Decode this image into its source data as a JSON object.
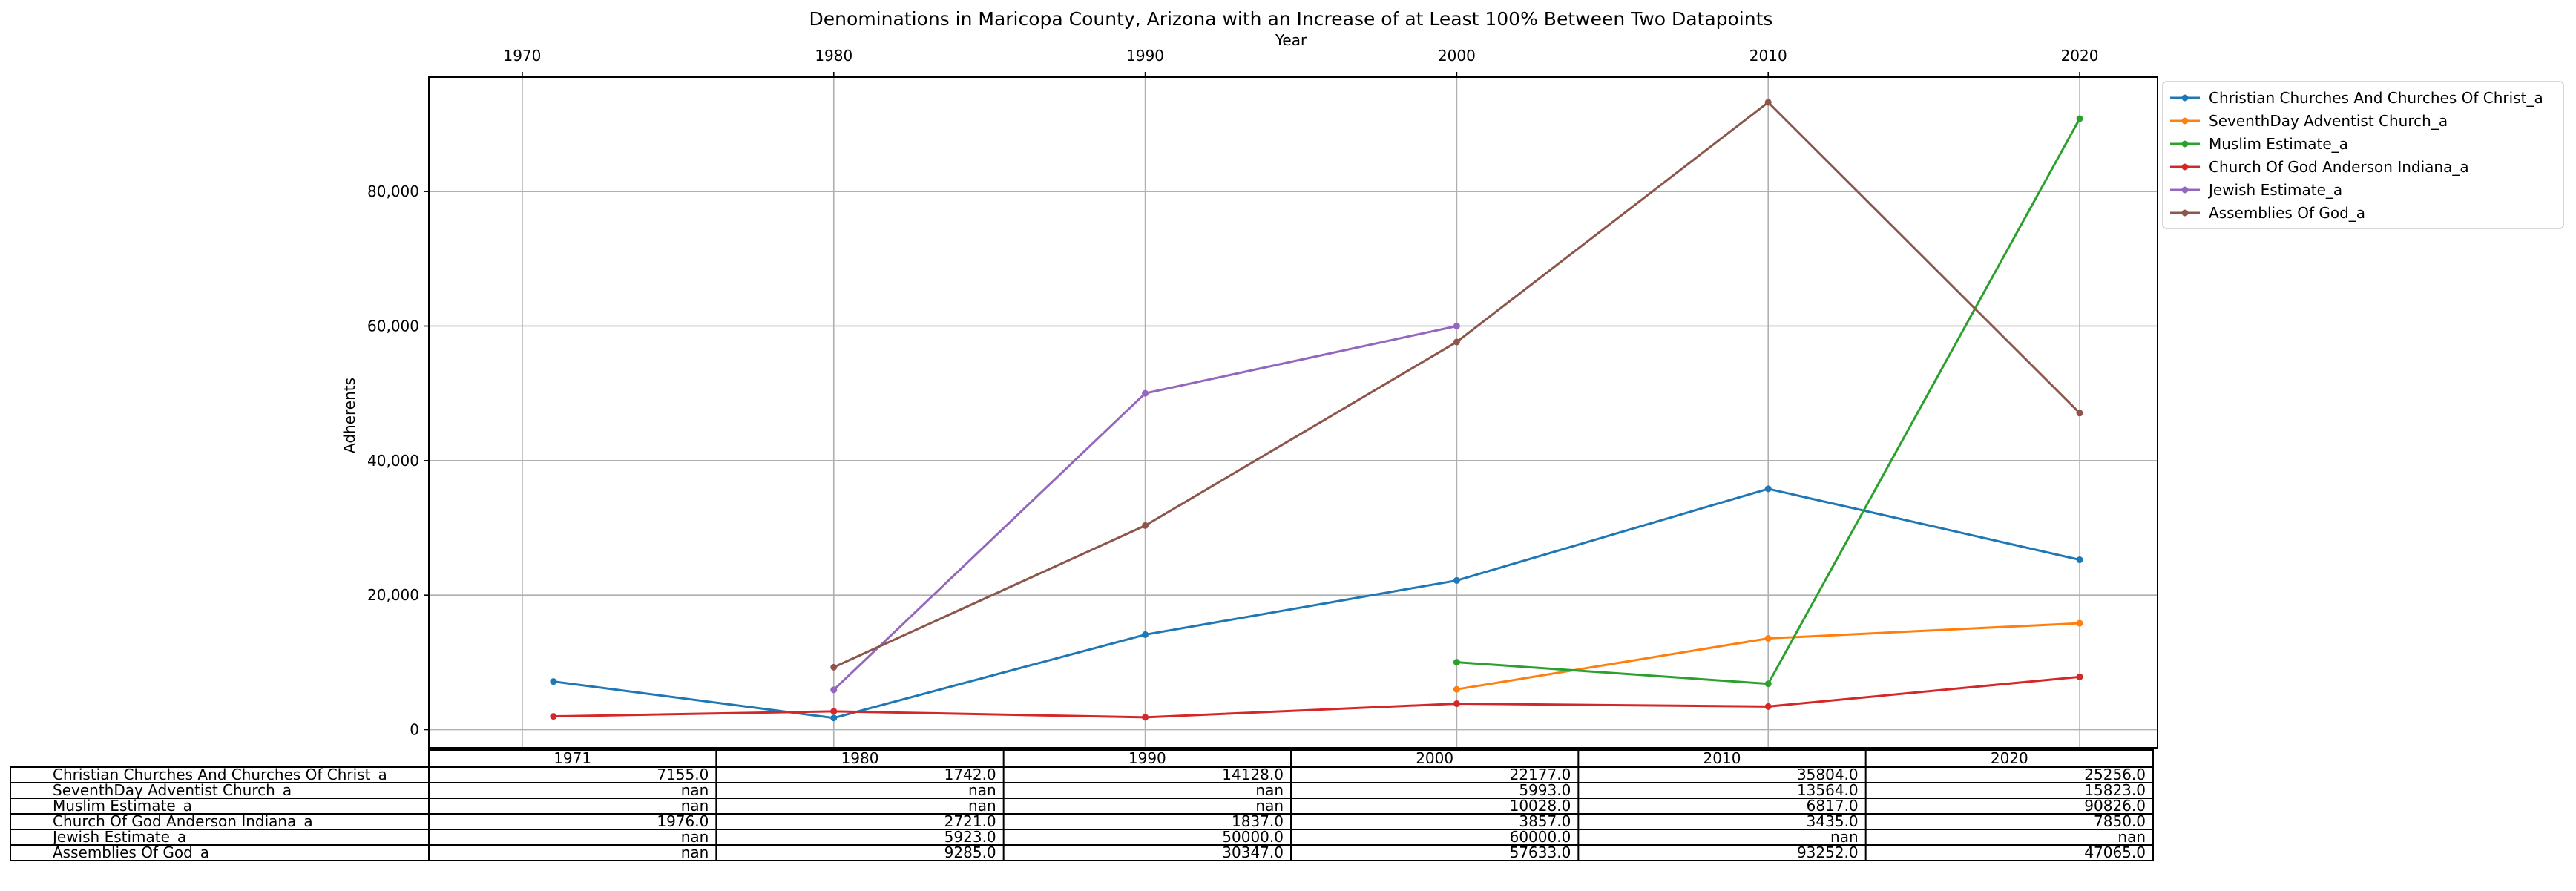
{
  "chart_data": {
    "type": "line",
    "title": "Denominations in Maricopa County, Arizona with an Increase of at Least 100% Between Two Datapoints",
    "xlabel": "Year",
    "ylabel": "Adherents",
    "x_ticks": [
      "1970",
      "1980",
      "1990",
      "2000",
      "2010",
      "2020"
    ],
    "y_ticks": [
      "0",
      "20,000",
      "40,000",
      "60,000",
      "80,000"
    ],
    "x_range": [
      1967,
      2022.5
    ],
    "y_range": [
      -2700,
      97000
    ],
    "grid": true,
    "legend_position": "outside-top-right",
    "x": [
      1971,
      1980,
      1990,
      2000,
      2010,
      2020
    ],
    "series": [
      {
        "name": "Christian Churches And Churches Of Christ_a",
        "color": "#1f77b4",
        "values": [
          7155,
          1742,
          14128,
          22177,
          35804,
          25256
        ]
      },
      {
        "name": "SeventhDay Adventist Church_a",
        "color": "#ff7f0e",
        "values": [
          null,
          null,
          null,
          5993,
          13564,
          15823
        ]
      },
      {
        "name": "Muslim Estimate_a",
        "color": "#2ca02c",
        "values": [
          null,
          null,
          null,
          10028,
          6817,
          90826
        ]
      },
      {
        "name": "Church Of God Anderson Indiana_a",
        "color": "#d62728",
        "values": [
          1976,
          2721,
          1837,
          3857,
          3435,
          7850
        ]
      },
      {
        "name": "Jewish Estimate_a",
        "color": "#9467bd",
        "values": [
          null,
          5923,
          50000,
          60000,
          null,
          null
        ]
      },
      {
        "name": "Assemblies Of God_a",
        "color": "#8c564b",
        "values": [
          null,
          9285,
          30347,
          57633,
          93252,
          47065
        ]
      }
    ],
    "table": {
      "columns": [
        "1971",
        "1980",
        "1990",
        "2000",
        "2010",
        "2020"
      ],
      "rows": [
        {
          "label": "Christian Churches And Churches Of Christ_a",
          "cells": [
            "7155.0",
            "1742.0",
            "14128.0",
            "22177.0",
            "35804.0",
            "25256.0"
          ]
        },
        {
          "label": "SeventhDay Adventist Church_a",
          "cells": [
            "nan",
            "nan",
            "nan",
            "5993.0",
            "13564.0",
            "15823.0"
          ]
        },
        {
          "label": "Muslim Estimate_a",
          "cells": [
            "nan",
            "nan",
            "nan",
            "10028.0",
            "6817.0",
            "90826.0"
          ]
        },
        {
          "label": "Church Of God Anderson Indiana_a",
          "cells": [
            "1976.0",
            "2721.0",
            "1837.0",
            "3857.0",
            "3435.0",
            "7850.0"
          ]
        },
        {
          "label": "Jewish Estimate_a",
          "cells": [
            "nan",
            "5923.0",
            "50000.0",
            "60000.0",
            "nan",
            "nan"
          ]
        },
        {
          "label": "Assemblies Of God_a",
          "cells": [
            "nan",
            "9285.0",
            "30347.0",
            "57633.0",
            "93252.0",
            "47065.0"
          ]
        }
      ]
    }
  }
}
